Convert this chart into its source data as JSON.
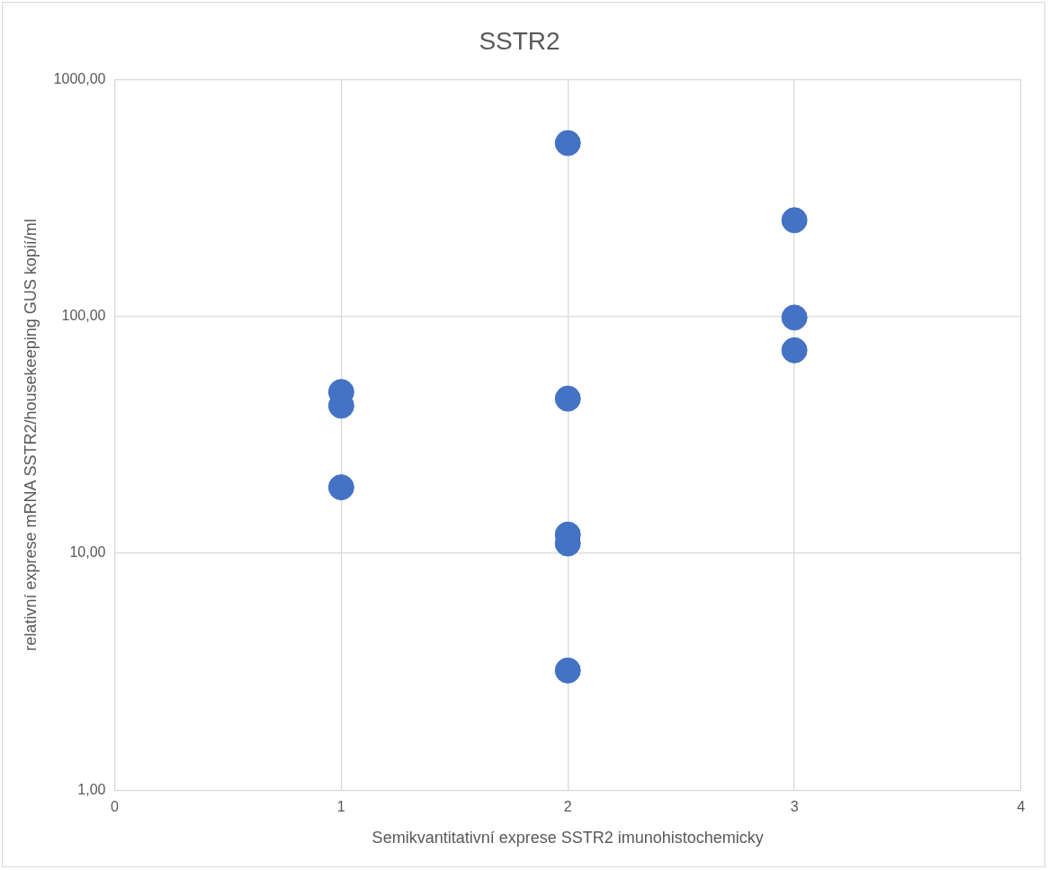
{
  "chart_data": {
    "type": "scatter",
    "title": "SSTR2",
    "xlabel": "Semikvantitativní exprese SSTR2 imunohistochemicky",
    "ylabel": "relativní exprese mRNA SSTR2/housekeeping GUS kopií/ml",
    "series": [
      {
        "color": "#4472c4",
        "x": [
          1,
          1,
          1,
          2,
          2,
          2,
          2,
          2,
          3,
          3,
          3
        ],
        "values": [
          48,
          42,
          19,
          540,
          45,
          12,
          11,
          3.2,
          255,
          99,
          72
        ]
      }
    ],
    "log": "y",
    "xlim": [
      0,
      4
    ],
    "xticks": [
      0,
      1,
      2,
      3,
      4
    ],
    "ylim": [
      1,
      1000
    ],
    "yticks": [
      {
        "value": 1,
        "label": "1,00"
      },
      {
        "value": 10,
        "label": "10,00"
      },
      {
        "value": 100,
        "label": "100,00"
      },
      {
        "value": 1000,
        "label": "1000,00"
      }
    ],
    "grid": true,
    "marker": "circle",
    "legend": false
  }
}
